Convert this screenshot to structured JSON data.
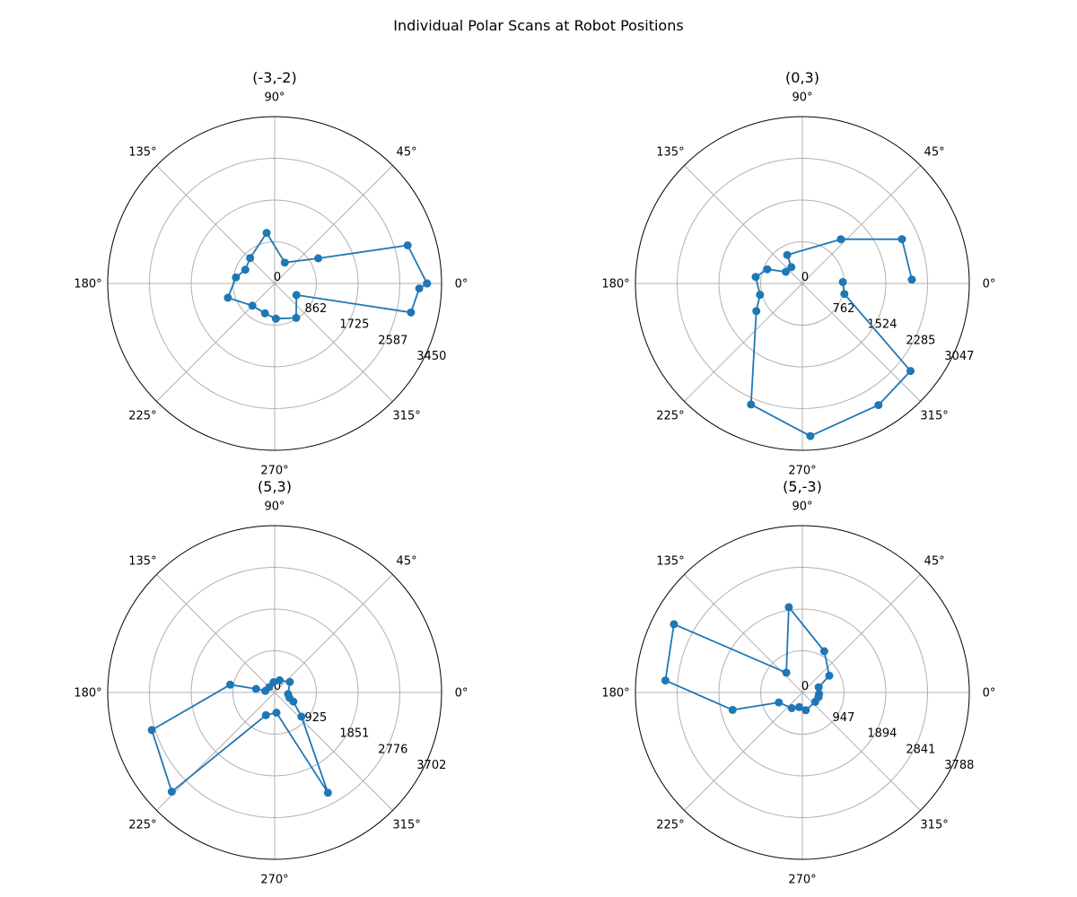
{
  "figure": {
    "title": "Individual Polar Scans at Robot Positions"
  },
  "style": {
    "line_color": "#1f77b4",
    "grid_color": "#b0b0b0",
    "frame_color": "#000000"
  },
  "chart_data": [
    {
      "type": "polar-line",
      "title": "(-3,-2)",
      "theta_ticks": [
        "0°",
        "45°",
        "90°",
        "135°",
        "180°",
        "225°",
        "270°",
        "315°"
      ],
      "r_ticks": [
        0,
        862,
        1725,
        2587,
        3450
      ],
      "rmax": 3450,
      "r_label_angle_deg": -22.5,
      "points": [
        {
          "theta": 0,
          "r": 3150
        },
        {
          "theta": -2,
          "r": 2990
        },
        {
          "theta": -12,
          "r": 2880
        },
        {
          "theta": -28,
          "r": 510
        },
        {
          "theta": -58,
          "r": 840
        },
        {
          "theta": -88,
          "r": 730
        },
        {
          "theta": -108,
          "r": 650
        },
        {
          "theta": -135,
          "r": 650
        },
        {
          "theta": -163,
          "r": 1010
        },
        {
          "theta": 171,
          "r": 810
        },
        {
          "theta": 155,
          "r": 670
        },
        {
          "theta": 134,
          "r": 730
        },
        {
          "theta": 99,
          "r": 1060
        },
        {
          "theta": 64,
          "r": 480
        },
        {
          "theta": 30,
          "r": 1040
        },
        {
          "theta": 16,
          "r": 2860
        },
        {
          "theta": 0,
          "r": 3150
        }
      ]
    },
    {
      "type": "polar-line",
      "title": "(0,3)",
      "theta_ticks": [
        "0°",
        "45°",
        "90°",
        "135°",
        "180°",
        "225°",
        "270°",
        "315°"
      ],
      "r_ticks": [
        0,
        762,
        1524,
        2285,
        3047
      ],
      "rmax": 3047,
      "r_label_angle_deg": -22.5,
      "points": [
        {
          "theta": 2,
          "r": 740
        },
        {
          "theta": -14,
          "r": 790
        },
        {
          "theta": -39,
          "r": 2540
        },
        {
          "theta": -58,
          "r": 2620
        },
        {
          "theta": -87,
          "r": 2790
        },
        {
          "theta": -113,
          "r": 2400
        },
        {
          "theta": -149,
          "r": 980
        },
        {
          "theta": -165,
          "r": 800
        },
        {
          "theta": 172,
          "r": 860
        },
        {
          "theta": 158,
          "r": 690
        },
        {
          "theta": 145,
          "r": 370
        },
        {
          "theta": 124,
          "r": 360
        },
        {
          "theta": 118,
          "r": 590
        },
        {
          "theta": 49,
          "r": 1070
        },
        {
          "theta": 24,
          "r": 1990
        },
        {
          "theta": 2,
          "r": 2000
        }
      ]
    },
    {
      "type": "polar-line",
      "title": "(5,3)",
      "theta_ticks": [
        "0°",
        "45°",
        "90°",
        "135°",
        "180°",
        "225°",
        "270°",
        "315°"
      ],
      "r_ticks": [
        0,
        925,
        1851,
        2776,
        3702
      ],
      "rmax": 3702,
      "r_label_angle_deg": -22.5,
      "points": [
        {
          "theta": 68,
          "r": 290
        },
        {
          "theta": 35,
          "r": 410
        },
        {
          "theta": -7,
          "r": 300
        },
        {
          "theta": -20,
          "r": 350
        },
        {
          "theta": -26,
          "r": 460
        },
        {
          "theta": -42,
          "r": 800
        },
        {
          "theta": -62,
          "r": 2520
        },
        {
          "theta": -85,
          "r": 450
        },
        {
          "theta": -111,
          "r": 540
        },
        {
          "theta": -136,
          "r": 3170
        },
        {
          "theta": -163,
          "r": 2850
        },
        {
          "theta": 170,
          "r": 1000
        },
        {
          "theta": 169,
          "r": 420
        },
        {
          "theta": 171,
          "r": 210
        },
        {
          "theta": 135,
          "r": 170
        },
        {
          "theta": 96,
          "r": 230
        },
        {
          "theta": 68,
          "r": 290
        }
      ]
    },
    {
      "type": "polar-line",
      "title": "(5,-3)",
      "theta_ticks": [
        "0°",
        "45°",
        "90°",
        "135°",
        "180°",
        "225°",
        "270°",
        "315°"
      ],
      "r_ticks": [
        0,
        947,
        1894,
        2841,
        3788
      ],
      "rmax": 3788,
      "r_label_angle_deg": -22.5,
      "points": [
        {
          "theta": -16,
          "r": 380
        },
        {
          "theta": -36,
          "r": 360
        },
        {
          "theta": -79,
          "r": 410
        },
        {
          "theta": -102,
          "r": 340
        },
        {
          "theta": -124,
          "r": 430
        },
        {
          "theta": -157,
          "r": 580
        },
        {
          "theta": -166,
          "r": 1630
        },
        {
          "theta": 175,
          "r": 3120
        },
        {
          "theta": 152,
          "r": 3300
        },
        {
          "theta": 129,
          "r": 580
        },
        {
          "theta": 99,
          "r": 1960
        },
        {
          "theta": 62,
          "r": 1060
        },
        {
          "theta": 32,
          "r": 720
        },
        {
          "theta": 18,
          "r": 390
        },
        {
          "theta": -5,
          "r": 380
        },
        {
          "theta": -16,
          "r": 380
        }
      ]
    }
  ]
}
